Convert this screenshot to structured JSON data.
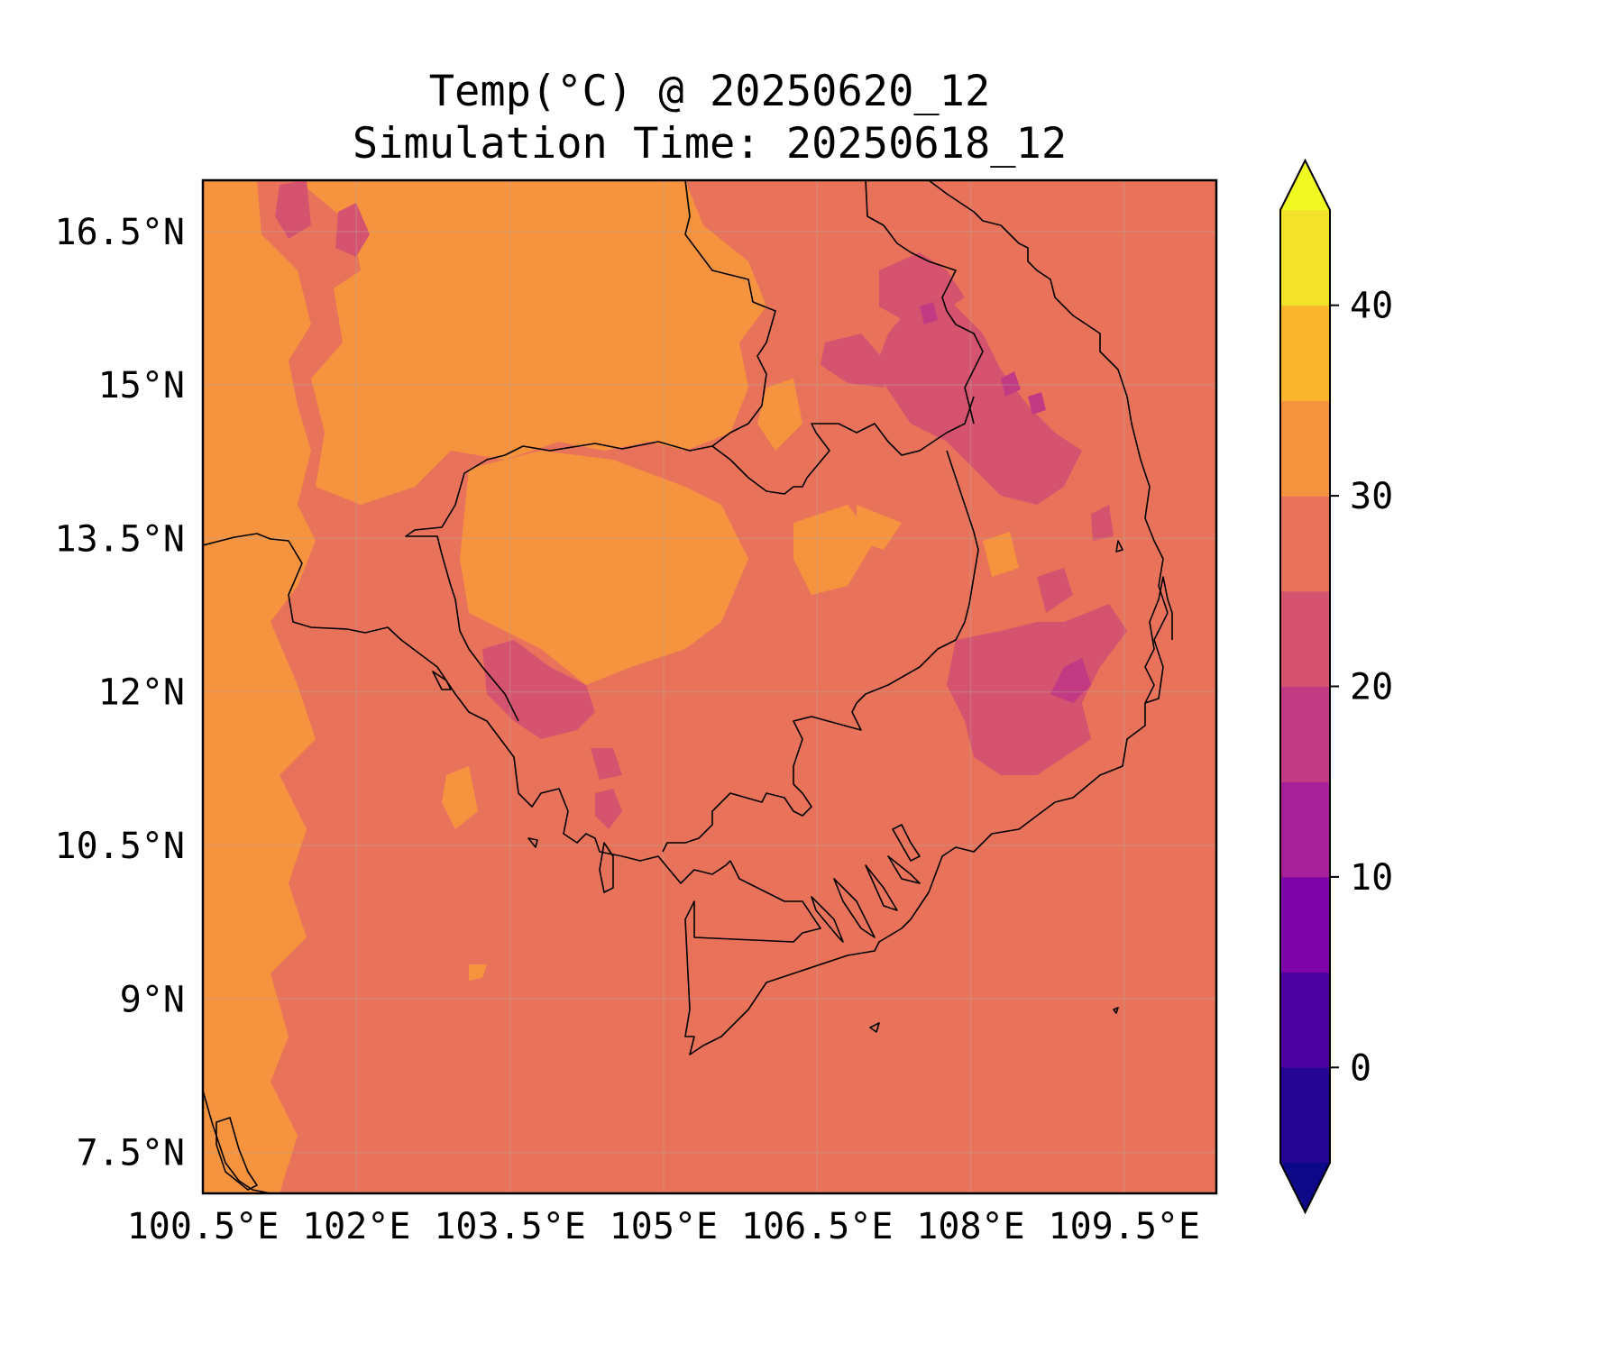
{
  "title": "Temp(°C) @ 20250620_12",
  "subtitle": "Simulation Time: 20250618_12",
  "map": {
    "lon_range": [
      100.5,
      110.4
    ],
    "lat_range": [
      7.1,
      17.0
    ],
    "x_ticks": [
      {
        "value": 100.5,
        "label": "100.5°E"
      },
      {
        "value": 102.0,
        "label": "102°E"
      },
      {
        "value": 103.5,
        "label": "103.5°E"
      },
      {
        "value": 105.0,
        "label": "105°E"
      },
      {
        "value": 106.5,
        "label": "106.5°E"
      },
      {
        "value": 108.0,
        "label": "108°E"
      },
      {
        "value": 109.5,
        "label": "109.5°E"
      }
    ],
    "y_ticks": [
      {
        "value": 16.5,
        "label": "16.5°N"
      },
      {
        "value": 15.0,
        "label": "15°N"
      },
      {
        "value": 13.5,
        "label": "13.5°N"
      },
      {
        "value": 12.0,
        "label": "12°N"
      },
      {
        "value": 10.5,
        "label": "10.5°N"
      },
      {
        "value": 9.0,
        "label": "9°N"
      },
      {
        "value": 7.5,
        "label": "7.5°N"
      }
    ],
    "grid": true,
    "background_color": "#e8735a"
  },
  "colorbar": {
    "range": [
      -5,
      45
    ],
    "extend": "both",
    "bins": [
      {
        "from": -5,
        "to": 0,
        "color": "#230691"
      },
      {
        "from": 0,
        "to": 5,
        "color": "#4c02a1"
      },
      {
        "from": 5,
        "to": 10,
        "color": "#7e03a8"
      },
      {
        "from": 10,
        "to": 15,
        "color": "#a62098"
      },
      {
        "from": 15,
        "to": 20,
        "color": "#c23a84"
      },
      {
        "from": 20,
        "to": 25,
        "color": "#d5536f"
      },
      {
        "from": 25,
        "to": 30,
        "color": "#e8735a"
      },
      {
        "from": 30,
        "to": 35,
        "color": "#f6933f"
      },
      {
        "from": 35,
        "to": 40,
        "color": "#fcb62e"
      },
      {
        "from": 40,
        "to": 45,
        "color": "#f2e229"
      }
    ],
    "under_color": "#0d0887",
    "over_color": "#f0f921",
    "ticks": [
      {
        "value": 0,
        "label": "0"
      },
      {
        "value": 10,
        "label": "10"
      },
      {
        "value": 20,
        "label": "20"
      },
      {
        "value": 30,
        "label": "30"
      },
      {
        "value": 40,
        "label": "40"
      }
    ]
  }
}
